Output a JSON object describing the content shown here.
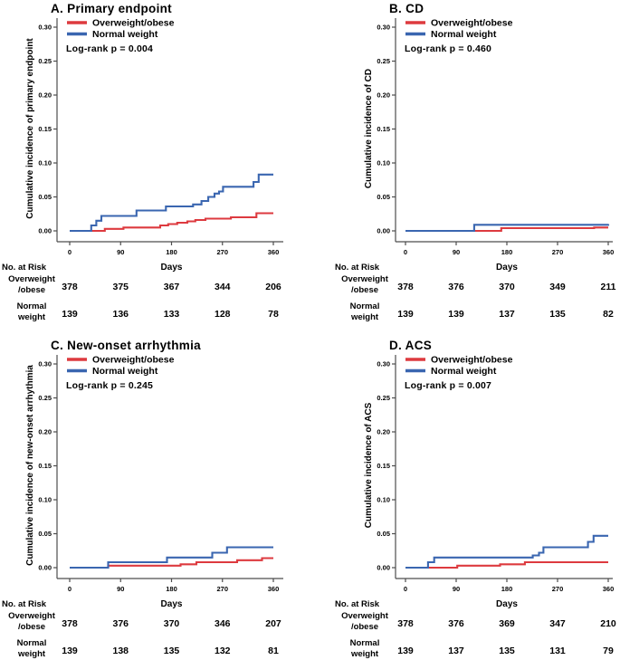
{
  "figure": {
    "background": "#ffffff",
    "colors": {
      "overweight": "#dd3a3f",
      "normal": "#3a66b0",
      "axis": "#4d4d4d",
      "text": "#000000"
    },
    "legend": {
      "overweight_label": "Overweight/obese",
      "normal_label": "Normal weight"
    },
    "axis": {
      "xlabel": "Days",
      "x_ticks": [
        "0",
        "90",
        "180",
        "270",
        "360"
      ],
      "y_ticks": [
        "0.00",
        "0.05",
        "0.10",
        "0.15",
        "0.20",
        "0.25",
        "0.30"
      ]
    },
    "risk_table": {
      "header": "No. at Risk",
      "rows": [
        {
          "lines": [
            "Overweight",
            "/obese"
          ]
        },
        {
          "lines": [
            "Normal",
            "weight"
          ]
        }
      ]
    }
  },
  "chart_data": [
    {
      "panel": "A",
      "type": "line",
      "subtype": "kaplan-meier-step",
      "title": "A. Primary endpoint",
      "ylabel": "Cumulative incidence of primary endpoint",
      "xlabel": "Days",
      "annotation": "Log-rank p = 0.004",
      "xlim": [
        0,
        360
      ],
      "ylim": [
        0,
        0.3
      ],
      "x_tick_values": [
        0,
        90,
        180,
        270,
        360
      ],
      "y_tick_values": [
        0.0,
        0.05,
        0.1,
        0.15,
        0.2,
        0.25,
        0.3
      ],
      "legend_position": "top-left-inside",
      "grid": false,
      "series": [
        {
          "name": "Overweight/obese",
          "color": "#dd3a3f",
          "step_points": [
            [
              0,
              0
            ],
            [
              62,
              0.003
            ],
            [
              95,
              0.005
            ],
            [
              160,
              0.008
            ],
            [
              174,
              0.01
            ],
            [
              190,
              0.012
            ],
            [
              208,
              0.014
            ],
            [
              222,
              0.016
            ],
            [
              240,
              0.018
            ],
            [
              285,
              0.02
            ],
            [
              330,
              0.026
            ],
            [
              360,
              0.026
            ]
          ]
        },
        {
          "name": "Normal weight",
          "color": "#3a66b0",
          "step_points": [
            [
              0,
              0
            ],
            [
              38,
              0.008
            ],
            [
              47,
              0.015
            ],
            [
              56,
              0.022
            ],
            [
              118,
              0.03
            ],
            [
              170,
              0.036
            ],
            [
              218,
              0.039
            ],
            [
              233,
              0.044
            ],
            [
              245,
              0.05
            ],
            [
              256,
              0.055
            ],
            [
              264,
              0.058
            ],
            [
              271,
              0.065
            ],
            [
              325,
              0.072
            ],
            [
              334,
              0.083
            ],
            [
              360,
              0.083
            ]
          ]
        }
      ],
      "at_risk": {
        "days": [
          0,
          90,
          180,
          270,
          360
        ],
        "rows": [
          {
            "label": "Overweight/obese",
            "values": [
              "378",
              "375",
              "367",
              "344",
              "206"
            ]
          },
          {
            "label": "Normal weight",
            "values": [
              "139",
              "136",
              "133",
              "128",
              "78"
            ]
          }
        ]
      }
    },
    {
      "panel": "B",
      "type": "line",
      "subtype": "kaplan-meier-step",
      "title": "B. CD",
      "ylabel": "Cumulative incidence of CD",
      "xlabel": "Days",
      "annotation": "Log-rank p = 0.460",
      "xlim": [
        0,
        360
      ],
      "ylim": [
        0,
        0.3
      ],
      "x_tick_values": [
        0,
        90,
        180,
        270,
        360
      ],
      "y_tick_values": [
        0.0,
        0.05,
        0.1,
        0.15,
        0.2,
        0.25,
        0.3
      ],
      "legend_position": "top-left-inside",
      "grid": false,
      "series": [
        {
          "name": "Overweight/obese",
          "color": "#dd3a3f",
          "step_points": [
            [
              0,
              0
            ],
            [
              170,
              0.004
            ],
            [
              335,
              0.005
            ],
            [
              360,
              0.005
            ]
          ]
        },
        {
          "name": "Normal weight",
          "color": "#3a66b0",
          "step_points": [
            [
              0,
              0
            ],
            [
              122,
              0.009
            ],
            [
              360,
              0.01
            ]
          ]
        }
      ],
      "at_risk": {
        "days": [
          0,
          90,
          180,
          270,
          360
        ],
        "rows": [
          {
            "label": "Overweight/obese",
            "values": [
              "378",
              "376",
              "370",
              "349",
              "211"
            ]
          },
          {
            "label": "Normal weight",
            "values": [
              "139",
              "139",
              "137",
              "135",
              "82"
            ]
          }
        ]
      }
    },
    {
      "panel": "C",
      "type": "line",
      "subtype": "kaplan-meier-step",
      "title": "C. New-onset  arrhythmia",
      "ylabel": "Cumulative incidence of new-onset arrhythmia",
      "xlabel": "Days",
      "annotation": "Log-rank p = 0.245",
      "xlim": [
        0,
        360
      ],
      "ylim": [
        0,
        0.3
      ],
      "x_tick_values": [
        0,
        90,
        180,
        270,
        360
      ],
      "y_tick_values": [
        0.0,
        0.05,
        0.1,
        0.15,
        0.2,
        0.25,
        0.3
      ],
      "legend_position": "top-left-inside",
      "grid": false,
      "series": [
        {
          "name": "Overweight/obese",
          "color": "#dd3a3f",
          "step_points": [
            [
              0,
              0
            ],
            [
              68,
              0.003
            ],
            [
              196,
              0.005
            ],
            [
              224,
              0.008
            ],
            [
              296,
              0.011
            ],
            [
              340,
              0.014
            ],
            [
              360,
              0.014
            ]
          ]
        },
        {
          "name": "Normal weight",
          "color": "#3a66b0",
          "step_points": [
            [
              0,
              0
            ],
            [
              68,
              0.008
            ],
            [
              172,
              0.015
            ],
            [
              252,
              0.022
            ],
            [
              278,
              0.03
            ],
            [
              360,
              0.03
            ]
          ]
        }
      ],
      "at_risk": {
        "days": [
          0,
          90,
          180,
          270,
          360
        ],
        "rows": [
          {
            "label": "Overweight/obese",
            "values": [
              "378",
              "376",
              "370",
              "346",
              "207"
            ]
          },
          {
            "label": "Normal weight",
            "values": [
              "139",
              "138",
              "135",
              "132",
              "81"
            ]
          }
        ]
      }
    },
    {
      "panel": "D",
      "type": "line",
      "subtype": "kaplan-meier-step",
      "title": "D. ACS",
      "ylabel": "Cumulative incidence of ACS",
      "xlabel": "Days",
      "annotation": "Log-rank p = 0.007",
      "xlim": [
        0,
        360
      ],
      "ylim": [
        0,
        0.3
      ],
      "x_tick_values": [
        0,
        90,
        180,
        270,
        360
      ],
      "y_tick_values": [
        0.0,
        0.05,
        0.1,
        0.15,
        0.2,
        0.25,
        0.3
      ],
      "legend_position": "top-left-inside",
      "grid": false,
      "series": [
        {
          "name": "Overweight/obese",
          "color": "#dd3a3f",
          "step_points": [
            [
              0,
              0
            ],
            [
              92,
              0.003
            ],
            [
              168,
              0.005
            ],
            [
              212,
              0.008
            ],
            [
              360,
              0.008
            ]
          ]
        },
        {
          "name": "Normal weight",
          "color": "#3a66b0",
          "step_points": [
            [
              0,
              0
            ],
            [
              40,
              0.008
            ],
            [
              51,
              0.015
            ],
            [
              226,
              0.018
            ],
            [
              237,
              0.022
            ],
            [
              245,
              0.03
            ],
            [
              324,
              0.038
            ],
            [
              334,
              0.047
            ],
            [
              360,
              0.047
            ]
          ]
        }
      ],
      "at_risk": {
        "days": [
          0,
          90,
          180,
          270,
          360
        ],
        "rows": [
          {
            "label": "Overweight/obese",
            "values": [
              "378",
              "376",
              "369",
              "347",
              "210"
            ]
          },
          {
            "label": "Normal weight",
            "values": [
              "139",
              "137",
              "135",
              "131",
              "79"
            ]
          }
        ]
      }
    }
  ]
}
